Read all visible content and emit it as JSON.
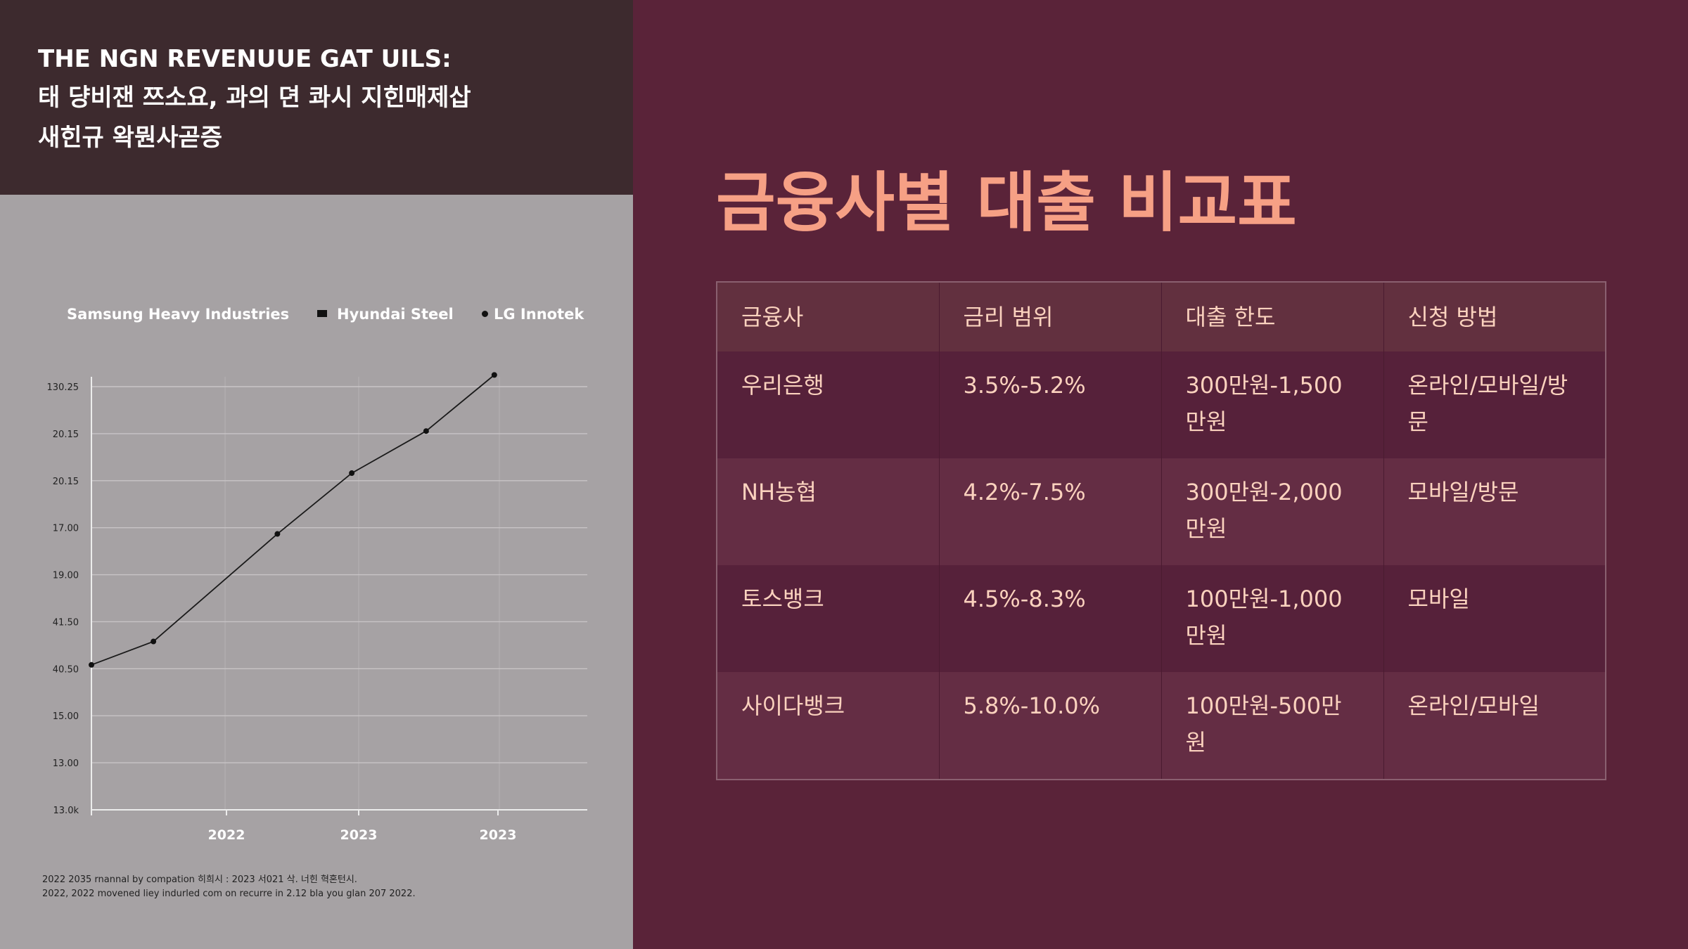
{
  "left_panel": {
    "header_lines": [
      "THE NGN REVENUUE GAT UILS:",
      "태 댱비잰 쯔소요, 과의 뎐 콰시 지힌매제삽",
      "새힌규 왁뭔사곧증"
    ],
    "chart_data": {
      "type": "line",
      "legend": [
        "Samsung Heavy Industries",
        "Hyundai Steel",
        "LG Innotek"
      ],
      "y_tick_labels": [
        "130.25",
        "20.15",
        "20.15",
        "17.00",
        "19.00",
        "41.50",
        "40.50",
        "15.00",
        "13.00",
        "13.0k"
      ],
      "x_tick_labels": [
        "2022",
        "2023",
        "2023"
      ],
      "points": [
        {
          "x": 0.0,
          "y": 3.1
        },
        {
          "x": 1.0,
          "y": 3.6
        },
        {
          "x": 3.0,
          "y": 5.9
        },
        {
          "x": 4.2,
          "y": 7.2
        },
        {
          "x": 5.4,
          "y": 8.1
        },
        {
          "x": 6.5,
          "y": 9.3
        }
      ],
      "x_range": [
        0,
        8
      ],
      "y_range": [
        0,
        9.05
      ],
      "grid": true,
      "legend_position": "top"
    },
    "footnote_lines": [
      "2022 2035 rnannal by compation 히희시 : 2023 서021 삭. 너힌 혁혼턴시.",
      "2022, 2022 movened liey indurled com on recurre in 2.12 bla you glan 207 2022."
    ]
  },
  "main": {
    "title": "금융사별 대출 비교표",
    "table": {
      "headers": [
        "금융사",
        "금리 범위",
        "대출 한도",
        "신청 방법"
      ],
      "rows": [
        [
          "우리은행",
          "3.5%-5.2%",
          "300만원-1,500만원",
          "온라인/모바일/방문"
        ],
        [
          "NH농협",
          "4.2%-7.5%",
          "300만원-2,000만원",
          "모바일/방문"
        ],
        [
          "토스뱅크",
          "4.5%-8.3%",
          "100만원-1,000만원",
          "모바일"
        ],
        [
          "사이다뱅크",
          "5.8%-10.0%",
          "100만원-500만원",
          "온라인/모바일"
        ]
      ]
    }
  },
  "colors": {
    "background": "#5a2339",
    "header_dark": "#3d2a2e",
    "chart_panel": "#a6a2a4",
    "title_accent": "#f6a085",
    "table_text": "#fbd2be"
  }
}
